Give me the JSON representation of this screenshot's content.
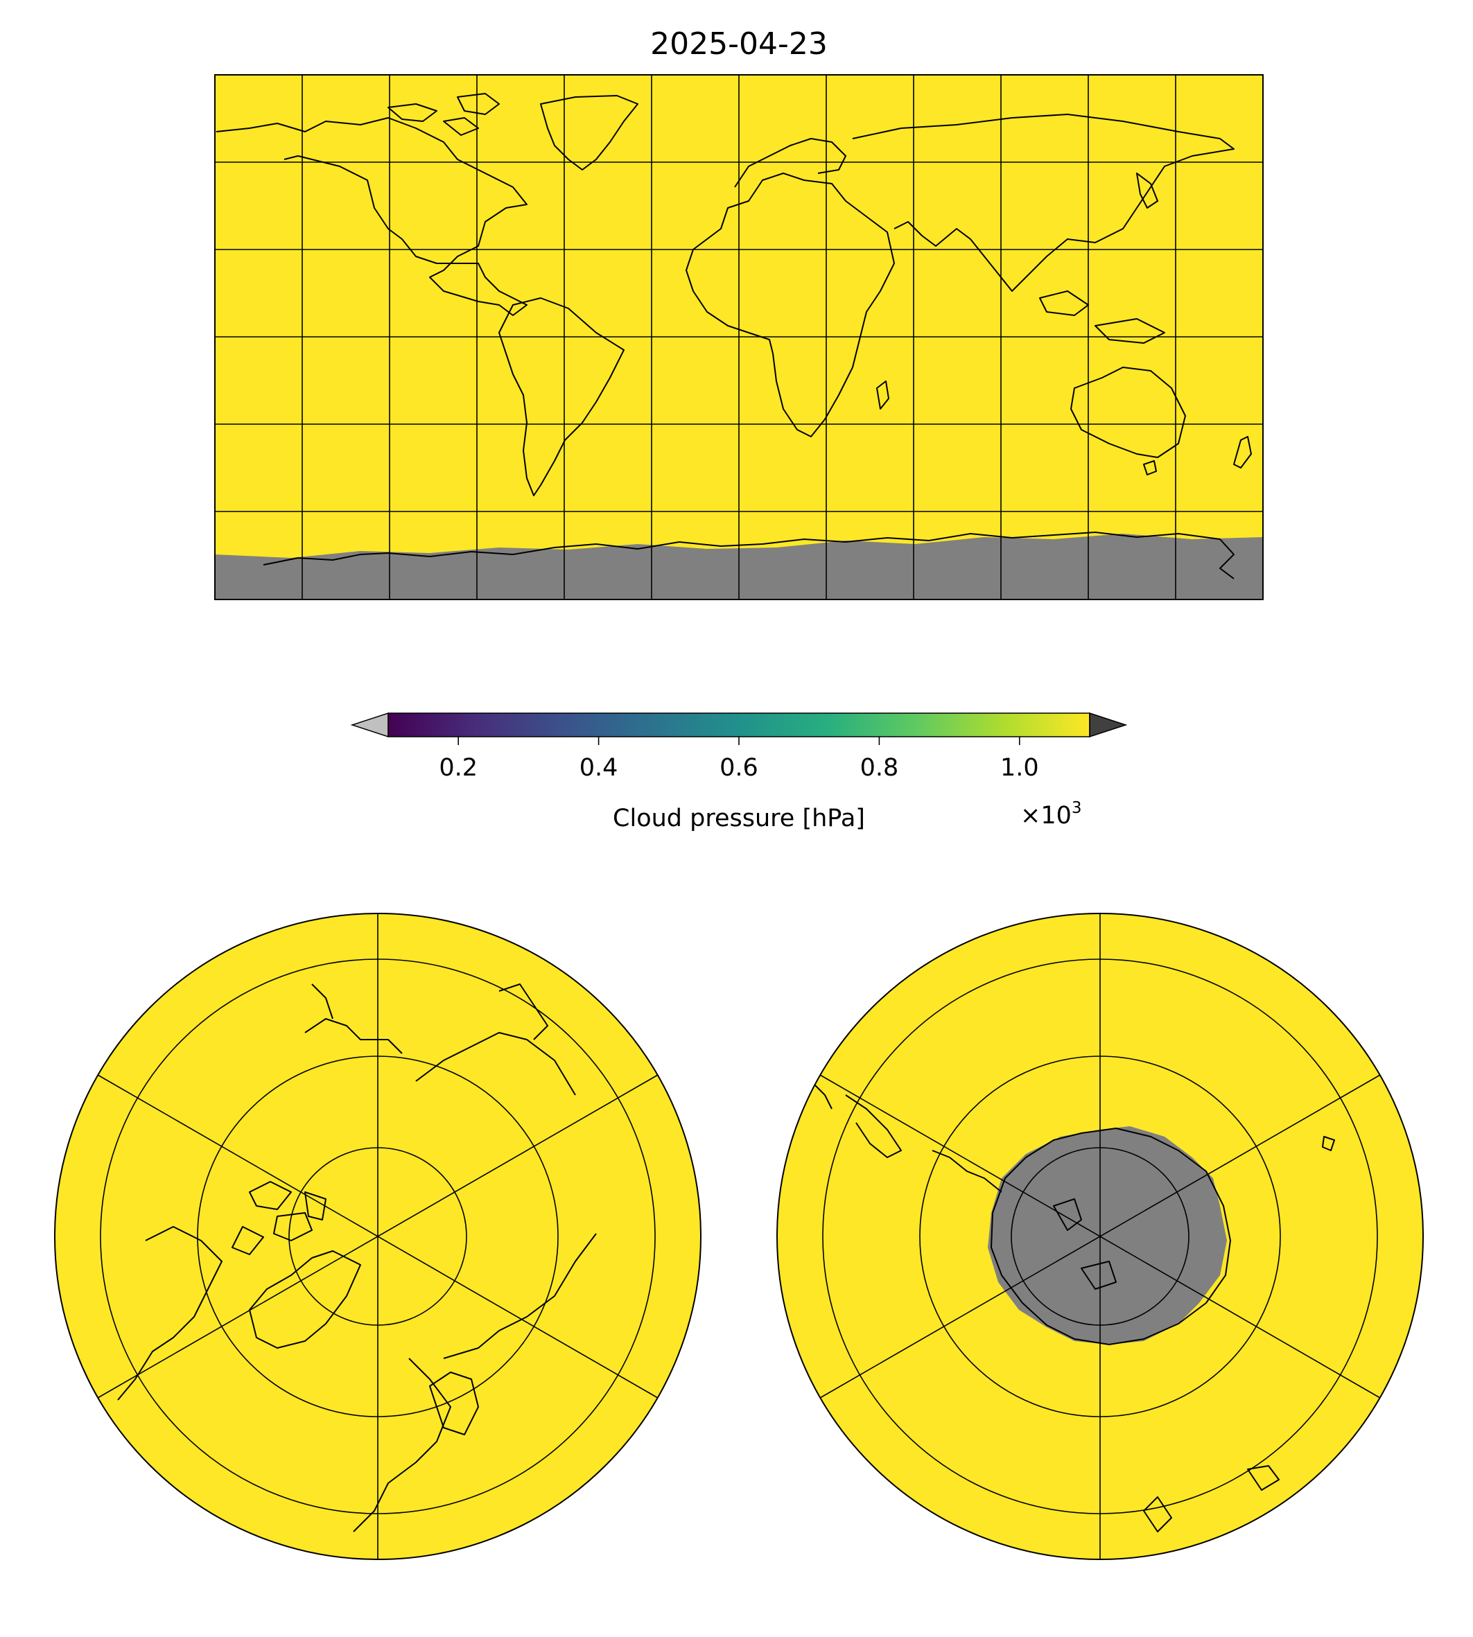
{
  "figure": {
    "title": "2025-04-23"
  },
  "colorbar": {
    "label": "Cloud pressure [hPa]",
    "multiplier": "×10",
    "multiplier_exponent": "3",
    "ticks": [
      "0.2",
      "0.4",
      "0.6",
      "0.8",
      "1.0"
    ],
    "colormap": "viridis",
    "vmin": 0.1,
    "vmax": 1.1,
    "extend": "both",
    "under_color": "#c0c0c0",
    "over_color": "#404040"
  },
  "maps": [
    {
      "id": "global",
      "projection": "plate-carree",
      "gridline_spacing_deg": 30
    },
    {
      "id": "north-polar",
      "projection": "north-polar-stereographic",
      "gridline_spacing_deg": 30
    },
    {
      "id": "south-polar",
      "projection": "south-polar-stereographic",
      "gridline_spacing_deg": 30
    }
  ],
  "colors": {
    "missing_data": "#808080",
    "coastline": "#000000",
    "gridline": "#000000"
  }
}
